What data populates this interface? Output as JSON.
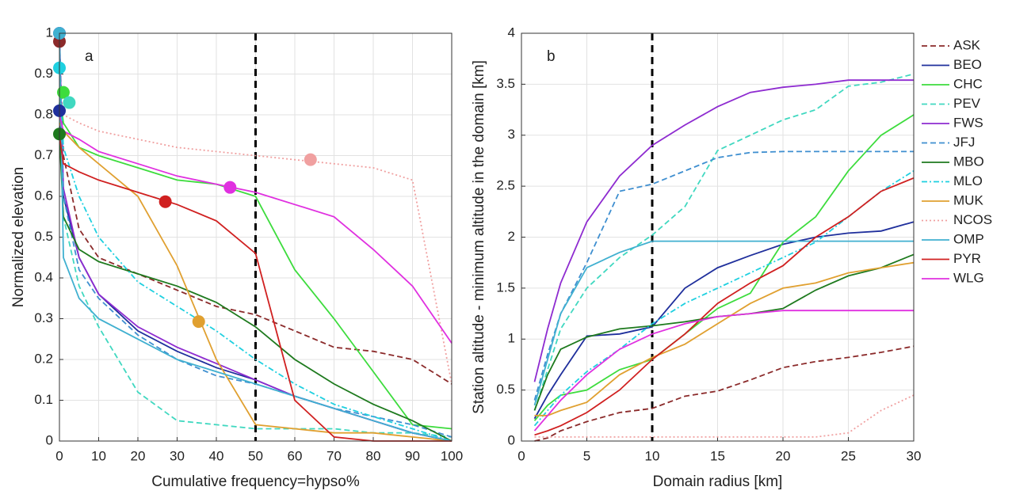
{
  "chart_data": [
    {
      "type": "line",
      "annotation": "a",
      "xlabel": "Cumulative frequency=hypso%",
      "ylabel": "Normalized elevation",
      "xlim": [
        0,
        100
      ],
      "ylim": [
        0,
        1
      ],
      "xticks": [
        0,
        10,
        20,
        30,
        40,
        50,
        60,
        70,
        80,
        90,
        100
      ],
      "yticks": [
        0,
        0.1,
        0.2,
        0.3,
        0.4,
        0.5,
        0.6,
        0.7,
        0.8,
        0.9,
        1
      ],
      "grid": true,
      "vline": 50,
      "x": [
        0,
        1,
        5,
        10,
        20,
        30,
        40,
        50,
        60,
        70,
        80,
        90,
        100
      ],
      "series": [
        {
          "color": "#8b2a2a",
          "dash": "dashed",
          "values": [
            0.98,
            0.7,
            0.52,
            0.45,
            0.41,
            0.37,
            0.33,
            0.31,
            0.27,
            0.23,
            0.22,
            0.2,
            0.14
          ],
          "point": {
            "x": 0,
            "y": 0.98
          }
        },
        {
          "color": "#1f2f9c",
          "dash": "solid",
          "values": [
            0.81,
            0.6,
            0.45,
            0.36,
            0.27,
            0.22,
            0.18,
            0.15,
            0.11,
            0.08,
            0.05,
            0.02,
            0
          ],
          "point": {
            "x": 0,
            "y": 0.81
          }
        },
        {
          "color": "#3ddc3d",
          "dash": "solid",
          "values": [
            0.855,
            0.78,
            0.72,
            0.7,
            0.67,
            0.64,
            0.63,
            0.6,
            0.42,
            0.3,
            0.17,
            0.04,
            0.03
          ],
          "point": {
            "x": 1,
            "y": 0.855
          }
        },
        {
          "color": "#40d8c0",
          "dash": "dashed",
          "values": [
            0.83,
            0.55,
            0.38,
            0.28,
            0.12,
            0.05,
            0.04,
            0.03,
            0.03,
            0.03,
            0.02,
            0.02,
            0.01
          ],
          "point": {
            "x": 2.5,
            "y": 0.83
          }
        },
        {
          "color": "#8e2bd0",
          "dash": "solid",
          "values": [
            1,
            0.62,
            0.45,
            0.36,
            0.28,
            0.23,
            0.19,
            0.15,
            0.11,
            0.08,
            0.05,
            0.02,
            0
          ],
          "point": {
            "x": 0,
            "y": 1
          }
        },
        {
          "color": "#3f8fd0",
          "dash": "dashed",
          "values": [
            1,
            0.6,
            0.42,
            0.35,
            0.26,
            0.2,
            0.16,
            0.14,
            0.11,
            0.08,
            0.06,
            0.04,
            0.01
          ]
        },
        {
          "color": "#1e7a1e",
          "dash": "solid",
          "values": [
            0.753,
            0.55,
            0.47,
            0.44,
            0.41,
            0.38,
            0.34,
            0.28,
            0.2,
            0.14,
            0.09,
            0.05,
            0
          ],
          "point": {
            "x": 0,
            "y": 0.753
          }
        },
        {
          "color": "#1fd0e0",
          "dash": "dashdot",
          "values": [
            0.915,
            0.72,
            0.6,
            0.5,
            0.39,
            0.33,
            0.27,
            0.2,
            0.14,
            0.09,
            0.06,
            0.03,
            0
          ],
          "point": {
            "x": 0,
            "y": 0.915
          }
        },
        {
          "color": "#e0a030",
          "dash": "solid",
          "values": [
            0.78,
            0.76,
            0.72,
            0.68,
            0.6,
            0.43,
            0.2,
            0.04,
            0.03,
            0.02,
            0.02,
            0.01,
            0
          ],
          "point": {
            "x": 35.5,
            "y": 0.293
          }
        },
        {
          "color": "#f0a0a0",
          "dash": "dotted",
          "values": [
            0.82,
            0.8,
            0.78,
            0.76,
            0.74,
            0.72,
            0.71,
            0.7,
            0.69,
            0.68,
            0.67,
            0.64,
            0.14
          ],
          "point": {
            "x": 64,
            "y": 0.69
          }
        },
        {
          "color": "#40b0d0",
          "dash": "solid",
          "values": [
            1,
            0.45,
            0.35,
            0.3,
            0.25,
            0.2,
            0.17,
            0.14,
            0.11,
            0.08,
            0.05,
            0.02,
            0
          ],
          "point": {
            "x": 0,
            "y": 1
          }
        },
        {
          "color": "#d02020",
          "dash": "solid",
          "values": [
            0.75,
            0.68,
            0.66,
            0.64,
            0.61,
            0.58,
            0.54,
            0.46,
            0.1,
            0.01,
            0,
            0,
            0
          ],
          "point": {
            "x": 27,
            "y": 0.587
          }
        },
        {
          "color": "#e030e0",
          "dash": "solid",
          "values": [
            0.8,
            0.76,
            0.74,
            0.71,
            0.68,
            0.65,
            0.63,
            0.61,
            0.58,
            0.55,
            0.47,
            0.38,
            0.24
          ],
          "point": {
            "x": 43.5,
            "y": 0.622
          }
        }
      ]
    },
    {
      "type": "line",
      "annotation": "b",
      "xlabel": "Domain radius [km]",
      "ylabel": "Station altitude - minimum altitude in the domain [km]",
      "xlim": [
        0,
        30
      ],
      "ylim": [
        0,
        4
      ],
      "xticks": [
        0,
        5,
        10,
        15,
        20,
        25,
        30
      ],
      "yticks": [
        0,
        0.5,
        1,
        1.5,
        2,
        2.5,
        3,
        3.5,
        4
      ],
      "grid": true,
      "vline": 10,
      "legend": "right-outside",
      "x": [
        1,
        2,
        3,
        5,
        7.5,
        10,
        12.5,
        15,
        17.5,
        20,
        22.5,
        25,
        27.5,
        30
      ],
      "series": [
        {
          "name": "ASK",
          "color": "#8b2a2a",
          "dash": "dashed",
          "values": [
            0,
            0.03,
            0.1,
            0.19,
            0.28,
            0.32,
            0.44,
            0.49,
            0.6,
            0.72,
            0.78,
            0.82,
            0.87,
            0.93
          ]
        },
        {
          "name": "BEO",
          "color": "#1f2f9c",
          "dash": "solid",
          "values": [
            0.22,
            0.45,
            0.65,
            1.03,
            1.05,
            1.12,
            1.5,
            1.7,
            1.82,
            1.93,
            2.0,
            2.04,
            2.06,
            2.15
          ]
        },
        {
          "name": "CHC",
          "color": "#3ddc3d",
          "dash": "solid",
          "values": [
            0.2,
            0.35,
            0.45,
            0.5,
            0.7,
            0.8,
            1.05,
            1.3,
            1.45,
            1.95,
            2.2,
            2.65,
            3.0,
            3.2
          ]
        },
        {
          "name": "PEV",
          "color": "#40d8c0",
          "dash": "dashed",
          "values": [
            0.3,
            0.7,
            1.1,
            1.5,
            1.8,
            2.02,
            2.3,
            2.85,
            3.0,
            3.15,
            3.25,
            3.48,
            3.52,
            3.6
          ]
        },
        {
          "name": "FWS",
          "color": "#8e2bd0",
          "dash": "solid",
          "values": [
            0.58,
            1.1,
            1.55,
            2.15,
            2.6,
            2.9,
            3.1,
            3.28,
            3.42,
            3.47,
            3.5,
            3.54,
            3.54,
            3.54
          ]
        },
        {
          "name": "JFJ",
          "color": "#3f8fd0",
          "dash": "dashed",
          "values": [
            0.4,
            0.85,
            1.25,
            1.75,
            2.45,
            2.52,
            2.65,
            2.78,
            2.83,
            2.84,
            2.84,
            2.84,
            2.84,
            2.84
          ]
        },
        {
          "name": "MBO",
          "color": "#1e7a1e",
          "dash": "solid",
          "values": [
            0.3,
            0.65,
            0.9,
            1.02,
            1.1,
            1.13,
            1.17,
            1.22,
            1.25,
            1.3,
            1.48,
            1.62,
            1.7,
            1.83
          ]
        },
        {
          "name": "MLO",
          "color": "#1fd0e0",
          "dash": "dashdot",
          "values": [
            0.15,
            0.3,
            0.45,
            0.68,
            0.9,
            1.15,
            1.35,
            1.5,
            1.65,
            1.8,
            1.95,
            2.2,
            2.45,
            2.65
          ]
        },
        {
          "name": "MUK",
          "color": "#e0a030",
          "dash": "solid",
          "values": [
            0.25,
            0.25,
            0.3,
            0.38,
            0.65,
            0.82,
            0.95,
            1.15,
            1.35,
            1.5,
            1.55,
            1.65,
            1.7,
            1.75
          ]
        },
        {
          "name": "NCOS",
          "color": "#f0a0a0",
          "dash": "dotted",
          "values": [
            0.04,
            0.04,
            0.04,
            0.04,
            0.04,
            0.04,
            0.04,
            0.04,
            0.04,
            0.04,
            0.04,
            0.08,
            0.3,
            0.45
          ]
        },
        {
          "name": "OMP",
          "color": "#40b0d0",
          "dash": "solid",
          "values": [
            0.35,
            0.8,
            1.25,
            1.7,
            1.85,
            1.96,
            1.96,
            1.96,
            1.96,
            1.96,
            1.96,
            1.96,
            1.96,
            1.96
          ]
        },
        {
          "name": "PYR",
          "color": "#d02020",
          "dash": "solid",
          "values": [
            0.06,
            0.1,
            0.15,
            0.28,
            0.5,
            0.8,
            1.05,
            1.35,
            1.55,
            1.72,
            2.0,
            2.2,
            2.45,
            2.58
          ]
        },
        {
          "name": "WLG",
          "color": "#e030e0",
          "dash": "solid",
          "values": [
            0.1,
            0.25,
            0.4,
            0.65,
            0.9,
            1.05,
            1.15,
            1.22,
            1.25,
            1.28,
            1.28,
            1.28,
            1.28,
            1.28
          ]
        }
      ]
    }
  ]
}
